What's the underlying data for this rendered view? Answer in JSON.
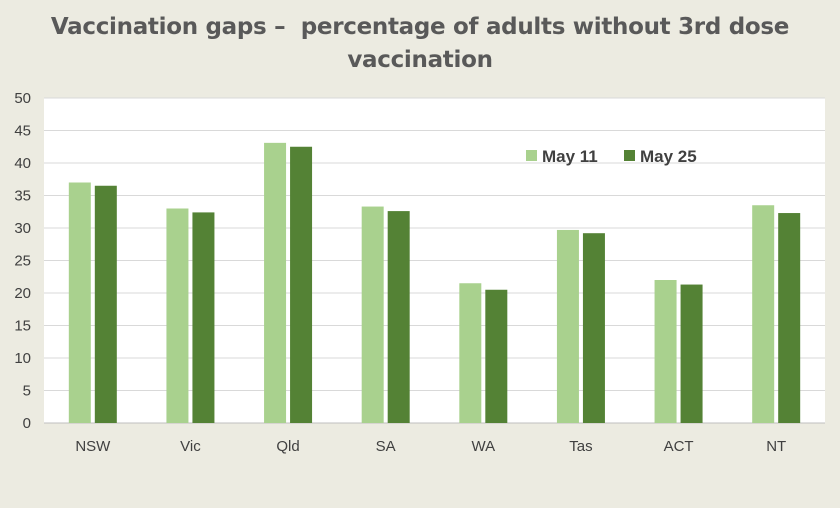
{
  "title_lines": [
    "Vaccination gaps –  percentage of adults without 3rd dose",
    "vaccination"
  ],
  "chart_data": {
    "type": "bar",
    "title": "Vaccination gaps –  percentage of adults without 3rd dose vaccination",
    "categories": [
      "NSW",
      "Vic",
      "Qld",
      "SA",
      "WA",
      "Tas",
      "ACT",
      "NT"
    ],
    "series": [
      {
        "name": "May 11",
        "values": [
          37.0,
          33.0,
          43.1,
          33.3,
          21.5,
          29.7,
          22.0,
          33.5
        ]
      },
      {
        "name": "May 25",
        "values": [
          36.5,
          32.4,
          42.5,
          32.6,
          20.5,
          29.2,
          21.3,
          32.3
        ]
      }
    ],
    "xlabel": "",
    "ylabel": "",
    "ylim": [
      0,
      50
    ],
    "yticks": [
      "0",
      "5",
      "10",
      "15",
      "20",
      "25",
      "30",
      "35",
      "40",
      "45",
      "50"
    ],
    "grid": true,
    "legend_position": "top-right"
  },
  "colors": {
    "background": "#ecebe1",
    "plot_area": "#ffffff",
    "series": [
      "#a9d18e",
      "#548235"
    ],
    "gridline": "#d9d9d9"
  }
}
